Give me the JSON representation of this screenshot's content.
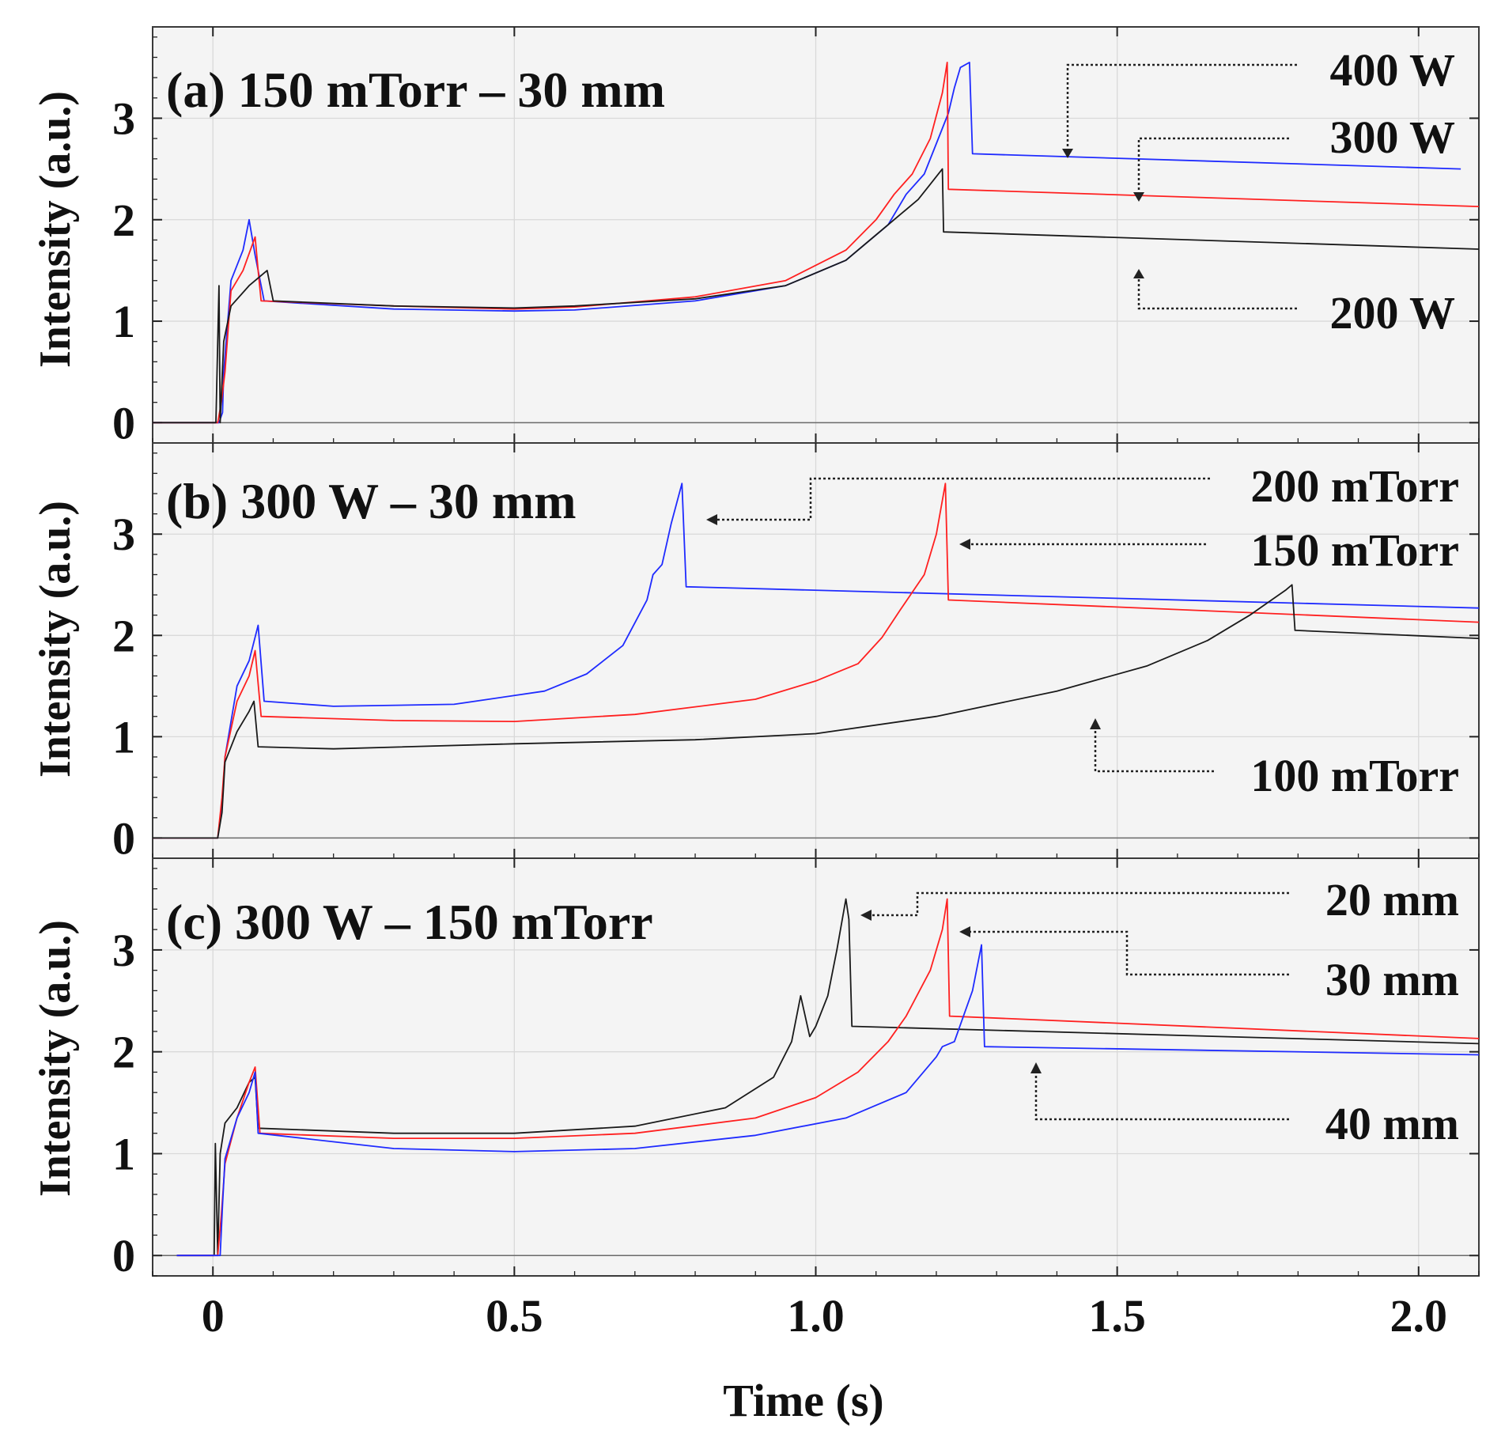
{
  "chart_data": {
    "type": "line",
    "xlabel": "Time (s)",
    "xlim": [
      -0.1,
      2.1
    ],
    "x_ticks": [
      "0",
      "0.5",
      "1.0",
      "1.5",
      "2.0"
    ],
    "x_tick_values": [
      0,
      0.5,
      1.0,
      1.5,
      2.0
    ],
    "panels": [
      {
        "title": "(a) 150 mTorr – 30 mm",
        "ylabel": "Intensity (a.u.)",
        "ylim": [
          -0.2,
          3.9
        ],
        "y_ticks": [
          "0",
          "1",
          "2",
          "3"
        ],
        "series": [
          {
            "name": "400 W",
            "color": "#1f2bff",
            "x": [
              -0.1,
              0.01,
              0.016,
              0.018,
              0.03,
              0.05,
              0.06,
              0.07,
              0.085,
              0.3,
              0.5,
              0.6,
              0.8,
              0.95,
              1.05,
              1.12,
              1.15,
              1.18,
              1.2,
              1.22,
              1.23,
              1.24,
              1.255,
              1.26,
              2.07
            ],
            "y": [
              0,
              0,
              0.1,
              0.5,
              1.4,
              1.7,
              2.0,
              1.65,
              1.2,
              1.12,
              1.1,
              1.11,
              1.2,
              1.35,
              1.6,
              1.95,
              2.25,
              2.45,
              2.75,
              3.05,
              3.3,
              3.5,
              3.55,
              2.65,
              2.5
            ]
          },
          {
            "name": "300 W",
            "color": "#ff2020",
            "x": [
              -0.1,
              0.008,
              0.014,
              0.02,
              0.03,
              0.05,
              0.07,
              0.075,
              0.08,
              0.3,
              0.5,
              0.6,
              0.8,
              0.95,
              1.05,
              1.1,
              1.13,
              1.16,
              1.19,
              1.21,
              1.218,
              1.22,
              2.1
            ],
            "y": [
              0,
              0,
              0.2,
              0.5,
              1.3,
              1.5,
              1.83,
              1.5,
              1.2,
              1.15,
              1.12,
              1.14,
              1.24,
              1.4,
              1.7,
              2.0,
              2.25,
              2.45,
              2.8,
              3.25,
              3.55,
              2.3,
              2.13
            ]
          },
          {
            "name": "200 W",
            "color": "#1a1a1a",
            "x": [
              -0.1,
              0.005,
              0.01,
              0.012,
              0.018,
              0.03,
              0.06,
              0.09,
              0.1,
              0.3,
              0.5,
              0.6,
              0.8,
              0.95,
              1.05,
              1.1,
              1.14,
              1.17,
              1.19,
              1.21,
              1.212,
              2.1
            ],
            "y": [
              0,
              0,
              1.35,
              0.0,
              0.8,
              1.15,
              1.35,
              1.5,
              1.2,
              1.15,
              1.13,
              1.15,
              1.22,
              1.35,
              1.6,
              1.85,
              2.05,
              2.2,
              2.35,
              2.5,
              1.88,
              1.71
            ]
          }
        ],
        "legend": [
          "400 W",
          "300 W",
          "200 W"
        ]
      },
      {
        "title": "(b) 300 W – 30 mm",
        "ylabel": "Intensity (a.u.)",
        "ylim": [
          -0.2,
          3.9
        ],
        "y_ticks": [
          "0",
          "1",
          "2",
          "3"
        ],
        "series": [
          {
            "name": "200 mTorr",
            "color": "#1f2bff",
            "x": [
              -0.1,
              0.008,
              0.015,
              0.02,
              0.04,
              0.06,
              0.075,
              0.085,
              0.2,
              0.4,
              0.55,
              0.62,
              0.68,
              0.72,
              0.73,
              0.745,
              0.76,
              0.778,
              0.785,
              2.1
            ],
            "y": [
              0,
              0,
              0.3,
              0.8,
              1.5,
              1.75,
              2.1,
              1.35,
              1.3,
              1.32,
              1.45,
              1.62,
              1.9,
              2.35,
              2.6,
              2.7,
              3.1,
              3.5,
              2.48,
              2.27
            ]
          },
          {
            "name": "150 mTorr",
            "color": "#ff2020",
            "x": [
              -0.1,
              0.008,
              0.015,
              0.02,
              0.04,
              0.06,
              0.07,
              0.08,
              0.3,
              0.5,
              0.7,
              0.9,
              1.0,
              1.07,
              1.11,
              1.14,
              1.18,
              1.2,
              1.215,
              1.22,
              2.1
            ],
            "y": [
              0,
              0,
              0.4,
              0.8,
              1.35,
              1.6,
              1.85,
              1.2,
              1.16,
              1.15,
              1.22,
              1.37,
              1.55,
              1.72,
              1.98,
              2.25,
              2.6,
              3.0,
              3.5,
              2.35,
              2.13
            ]
          },
          {
            "name": "100 mTorr",
            "color": "#1a1a1a",
            "x": [
              -0.1,
              0.008,
              0.015,
              0.02,
              0.04,
              0.06,
              0.068,
              0.075,
              0.2,
              0.5,
              0.8,
              1.0,
              1.2,
              1.4,
              1.55,
              1.65,
              1.72,
              1.78,
              1.79,
              1.795,
              2.1
            ],
            "y": [
              0,
              0,
              0.25,
              0.75,
              1.05,
              1.25,
              1.35,
              0.9,
              0.88,
              0.93,
              0.97,
              1.03,
              1.2,
              1.45,
              1.7,
              1.95,
              2.2,
              2.45,
              2.5,
              2.05,
              1.97
            ]
          }
        ],
        "legend": [
          "200 mTorr",
          "150 mTorr",
          "100 mTorr"
        ]
      },
      {
        "title": "(c) 300 W – 150 mTorr",
        "ylabel": "Intensity (a.u.)",
        "ylim": [
          -0.2,
          3.9
        ],
        "y_ticks": [
          "0",
          "1",
          "2",
          "3"
        ],
        "series": [
          {
            "name": "20 mm",
            "color": "#1a1a1a",
            "x": [
              -0.06,
              0.002,
              0.004,
              0.008,
              0.012,
              0.02,
              0.04,
              0.06,
              0.07,
              0.075,
              0.3,
              0.5,
              0.7,
              0.85,
              0.93,
              0.96,
              0.975,
              0.99,
              1.0,
              1.02,
              1.035,
              1.05,
              1.055,
              1.06,
              2.1
            ],
            "y": [
              0,
              0,
              1.1,
              0.0,
              1.0,
              1.3,
              1.45,
              1.7,
              1.75,
              1.25,
              1.2,
              1.2,
              1.27,
              1.45,
              1.75,
              2.1,
              2.55,
              2.15,
              2.25,
              2.55,
              3.0,
              3.5,
              3.3,
              2.25,
              2.08
            ]
          },
          {
            "name": "30 mm",
            "color": "#ff2020",
            "x": [
              -0.06,
              0.008,
              0.014,
              0.02,
              0.04,
              0.06,
              0.07,
              0.078,
              0.3,
              0.5,
              0.7,
              0.9,
              1.0,
              1.07,
              1.12,
              1.15,
              1.19,
              1.21,
              1.218,
              1.222,
              2.1
            ],
            "y": [
              0,
              0,
              0.4,
              0.9,
              1.35,
              1.7,
              1.85,
              1.2,
              1.15,
              1.15,
              1.2,
              1.35,
              1.55,
              1.8,
              2.1,
              2.35,
              2.8,
              3.2,
              3.5,
              2.35,
              2.13
            ]
          },
          {
            "name": "40 mm",
            "color": "#1f2bff",
            "x": [
              -0.06,
              0.012,
              0.016,
              0.02,
              0.04,
              0.06,
              0.07,
              0.075,
              0.3,
              0.5,
              0.7,
              0.9,
              1.05,
              1.15,
              1.2,
              1.21,
              1.23,
              1.26,
              1.275,
              1.28,
              2.1
            ],
            "y": [
              0,
              0,
              0.5,
              0.95,
              1.35,
              1.6,
              1.8,
              1.2,
              1.05,
              1.02,
              1.05,
              1.18,
              1.35,
              1.6,
              1.95,
              2.05,
              2.1,
              2.6,
              3.05,
              2.05,
              1.97
            ]
          }
        ],
        "legend": [
          "20 mm",
          "30 mm",
          "40 mm"
        ]
      }
    ]
  }
}
